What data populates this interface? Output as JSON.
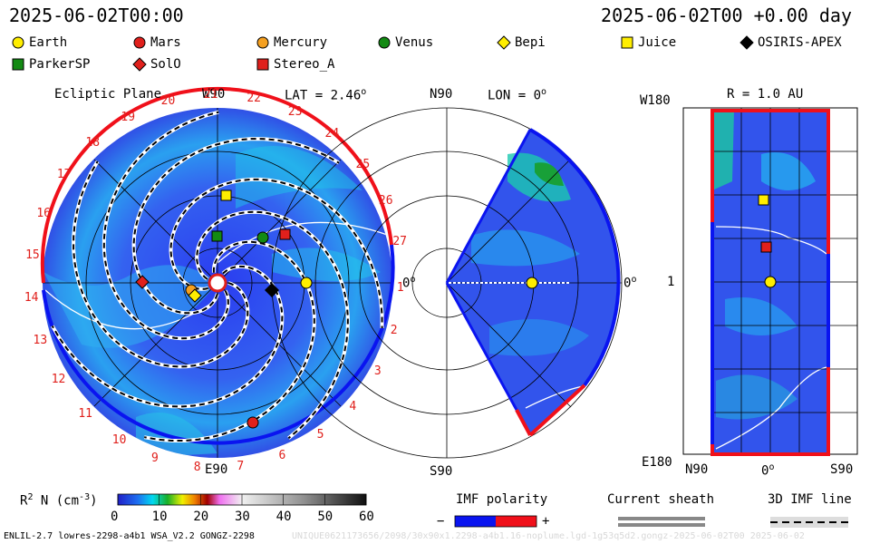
{
  "header": {
    "datetime_left": "2025-06-02T00:00",
    "datetime_right": "2025-06-02T00 +0.00 day"
  },
  "legend": [
    {
      "name": "Earth",
      "shape": "circle",
      "color": "#ffee00"
    },
    {
      "name": "Mars",
      "shape": "circle",
      "color": "#e0201c"
    },
    {
      "name": "Mercury",
      "shape": "circle",
      "color": "#f5a020"
    },
    {
      "name": "Venus",
      "shape": "circle",
      "color": "#138a13"
    },
    {
      "name": "Bepi",
      "shape": "diamond",
      "color": "#ffee00"
    },
    {
      "name": "Juice",
      "shape": "square",
      "color": "#ffee00"
    },
    {
      "name": "OSIRIS-APEX",
      "shape": "diamond",
      "color": "#000000"
    },
    {
      "name": "ParkerSP",
      "shape": "square",
      "color": "#138a13"
    },
    {
      "name": "SolO",
      "shape": "diamond",
      "color": "#e0201c"
    },
    {
      "name": "Stereo_A",
      "shape": "square",
      "color": "#e0201c"
    }
  ],
  "ecliptic_panel": {
    "title": "Ecliptic Plane",
    "top_label": "W90",
    "lat_label": "LAT = 2.46",
    "lat_sup": "o",
    "right_label": "0",
    "right_sup": "o",
    "bottom_label": "E90",
    "carrington_numbers": [
      "1",
      "2",
      "3",
      "4",
      "5",
      "6",
      "7",
      "8",
      "9",
      "10",
      "11",
      "12",
      "13",
      "14",
      "15",
      "16",
      "17",
      "18",
      "19",
      "20",
      "21",
      "22",
      "23",
      "24",
      "25",
      "26",
      "27"
    ]
  },
  "meridional_panel": {
    "top_left": "N90",
    "lon_label": "LON = 0",
    "lon_sup": "o",
    "right_label": "0",
    "right_sup": "o",
    "bottom_left": "S90"
  },
  "latlon_panel": {
    "title": "R = 1.0 AU",
    "top_left": "W180",
    "mid_left": "1",
    "bottom_left": "E180",
    "x_left": "N90",
    "x_mid": "0",
    "x_mid_sup": "o",
    "x_right": "S90"
  },
  "colorbar": {
    "label_main": "R",
    "label_sup": "2",
    "label_rest": " N (cm",
    "label_exp": "-3",
    "label_close": ")",
    "ticks": [
      "0",
      "10",
      "20",
      "30",
      "40",
      "50",
      "60"
    ]
  },
  "imf_polarity": {
    "title": "IMF polarity",
    "minus": "−",
    "plus": "+",
    "neg_color": "#0a14f0",
    "pos_color": "#f0101a"
  },
  "current_sheath": {
    "title": "Current sheath"
  },
  "imf_3d": {
    "title": "3D IMF line"
  },
  "footer": {
    "left": "ENLIL-2.7 lowres-2298-a4b1 WSA_V2.2 GONGZ-2298",
    "right": "UNIQUE0621173656/2098/30x90x1.2298-a4b1.16-noplume.lgd-1g53q5d2.gongz-2025-06-02T00   2025-06-02"
  }
}
